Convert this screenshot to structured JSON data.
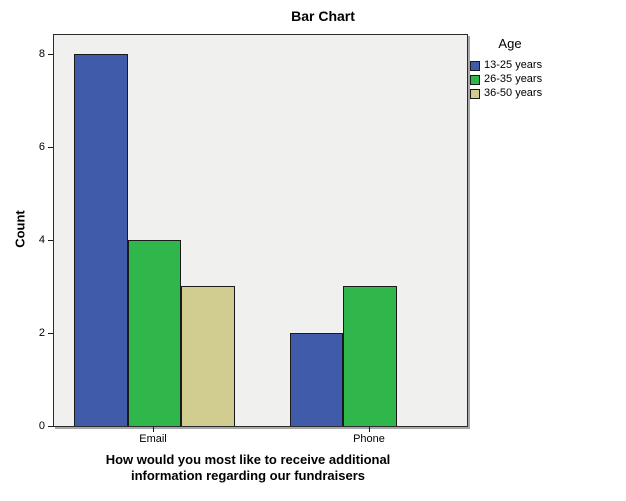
{
  "chart_data": {
    "type": "bar",
    "title": "Bar Chart",
    "categories": [
      "Email",
      "Phone"
    ],
    "series": [
      {
        "name": "13-25 years",
        "color": "#3F5BA9",
        "values": [
          8,
          2
        ]
      },
      {
        "name": "26-35 years",
        "color": "#2FB74C",
        "values": [
          4,
          3
        ]
      },
      {
        "name": "36-50 years",
        "color": "#D1CD90",
        "values": [
          3,
          null
        ]
      }
    ],
    "xlabel": "How would you most like to receive additional information regarding our fundraisers",
    "xlabel_lines": [
      "How would you most like to receive additional",
      "information regarding our fundraisers"
    ],
    "ylabel": "Count",
    "ylim": [
      0,
      8.45
    ],
    "yticks": [
      0,
      2,
      4,
      6,
      8
    ],
    "legend_title": "Age",
    "legend_position": "outside-top-right",
    "grid": false,
    "plot_background": "#F0F0EF",
    "bar_border_color": "#1a1a1a"
  }
}
